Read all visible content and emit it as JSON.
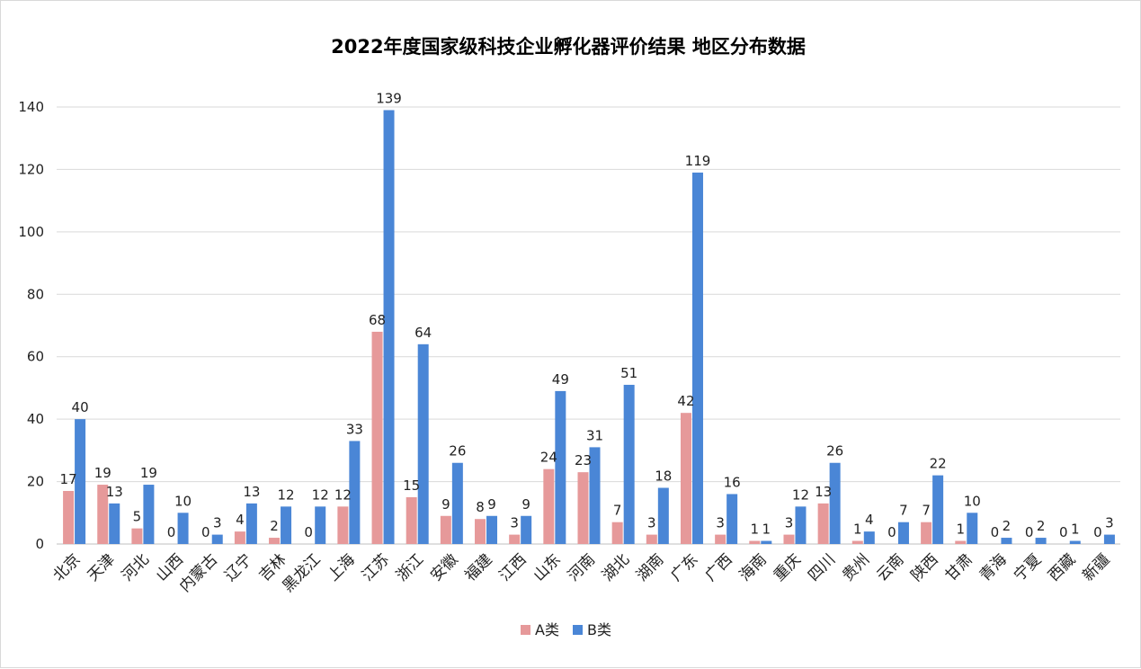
{
  "chart_data": {
    "type": "bar",
    "title": "2022年度国家级科技企业孵化器评价结果 地区分布数据",
    "xlabel": "",
    "ylabel": "",
    "ylim": [
      0,
      140
    ],
    "yticks": [
      0,
      20,
      40,
      60,
      80,
      100,
      120,
      140
    ],
    "grid": true,
    "legend_position": "bottom-center",
    "categories": [
      "北京",
      "天津",
      "河北",
      "山西",
      "内蒙古",
      "辽宁",
      "吉林",
      "黑龙江",
      "上海",
      "江苏",
      "浙江",
      "安徽",
      "福建",
      "江西",
      "山东",
      "河南",
      "湖北",
      "湖南",
      "广东",
      "广西",
      "海南",
      "重庆",
      "四川",
      "贵州",
      "云南",
      "陕西",
      "甘肃",
      "青海",
      "宁夏",
      "西藏",
      "新疆"
    ],
    "series": [
      {
        "name": "A类",
        "color": "#E6999A",
        "values": [
          17,
          19,
          5,
          0,
          0,
          4,
          2,
          0,
          12,
          68,
          15,
          9,
          8,
          3,
          24,
          23,
          7,
          3,
          42,
          3,
          1,
          3,
          13,
          1,
          0,
          7,
          1,
          0,
          0,
          0,
          0
        ]
      },
      {
        "name": "B类",
        "color": "#4A86D6",
        "values": [
          40,
          13,
          19,
          10,
          3,
          13,
          12,
          12,
          33,
          139,
          64,
          26,
          9,
          9,
          49,
          31,
          51,
          18,
          119,
          16,
          1,
          12,
          26,
          4,
          7,
          22,
          10,
          2,
          2,
          1,
          3
        ]
      }
    ]
  }
}
